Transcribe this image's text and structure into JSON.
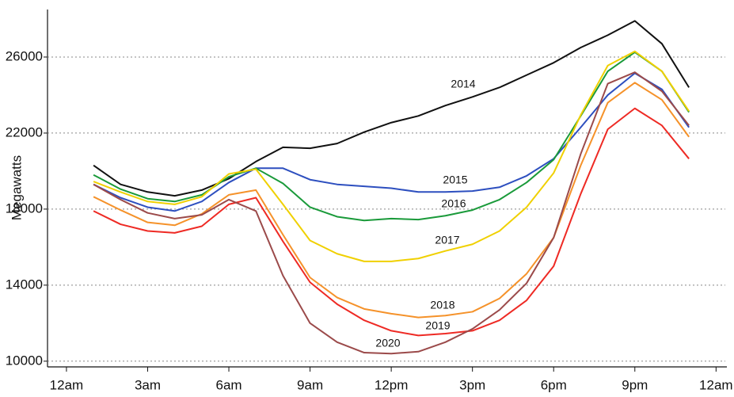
{
  "chart_data": {
    "type": "line",
    "ylabel": "Megawatts",
    "x": [
      1,
      2,
      3,
      4,
      5,
      6,
      7,
      8,
      9,
      10,
      11,
      12,
      13,
      14,
      15,
      16,
      17,
      18,
      19,
      20,
      21,
      22,
      23
    ],
    "xlim": [
      -0.7,
      24.4
    ],
    "xticks": [
      {
        "value": 0,
        "label": "12am"
      },
      {
        "value": 3,
        "label": "3am"
      },
      {
        "value": 6,
        "label": "6am"
      },
      {
        "value": 9,
        "label": "9am"
      },
      {
        "value": 12,
        "label": "12pm"
      },
      {
        "value": 15,
        "label": "3pm"
      },
      {
        "value": 18,
        "label": "6pm"
      },
      {
        "value": 21,
        "label": "9pm"
      },
      {
        "value": 24,
        "label": "12am"
      }
    ],
    "ylim": [
      9700,
      28500
    ],
    "yticks": [
      10000,
      14000,
      18000,
      22000,
      26000
    ],
    "grid": true,
    "series": [
      {
        "name": "2014",
        "color": "#111111",
        "values": [
          20300,
          19300,
          18900,
          18700,
          19000,
          19600,
          20500,
          21250,
          21200,
          21450,
          22050,
          22550,
          22900,
          23450,
          23900,
          24400,
          25050,
          25700,
          26500,
          27150,
          27900,
          26700,
          24400
        ]
      },
      {
        "name": "2015",
        "color": "#2d4fbf",
        "values": [
          19300,
          18600,
          18100,
          17900,
          18400,
          19400,
          20150,
          20150,
          19550,
          19300,
          19200,
          19100,
          18900,
          18900,
          18950,
          19150,
          19750,
          20650,
          22300,
          24000,
          25150,
          24300,
          22300
        ]
      },
      {
        "name": "2016",
        "color": "#1a9a3a",
        "values": [
          19800,
          19050,
          18550,
          18400,
          18750,
          19700,
          20150,
          19350,
          18100,
          17600,
          17400,
          17500,
          17450,
          17650,
          17950,
          18500,
          19400,
          20600,
          22900,
          25250,
          26250,
          25250,
          23100
        ]
      },
      {
        "name": "2017",
        "color": "#f0d000",
        "values": [
          19450,
          18900,
          18400,
          18250,
          18650,
          19850,
          20100,
          18250,
          16350,
          15650,
          15250,
          15250,
          15400,
          15800,
          16150,
          16850,
          18100,
          19900,
          22950,
          25550,
          26300,
          25250,
          23150
        ]
      },
      {
        "name": "2018",
        "color": "#f5922a",
        "values": [
          18650,
          17950,
          17300,
          17150,
          17750,
          18750,
          19000,
          16650,
          14400,
          13350,
          12750,
          12500,
          12300,
          12400,
          12600,
          13300,
          14600,
          16500,
          20300,
          23600,
          24650,
          23750,
          21800
        ]
      },
      {
        "name": "2019",
        "color": "#ee2a24",
        "values": [
          17900,
          17200,
          16850,
          16750,
          17100,
          18250,
          18600,
          16300,
          14150,
          13000,
          12150,
          11600,
          11350,
          11450,
          11600,
          12150,
          13200,
          15000,
          18800,
          22200,
          23300,
          22400,
          20650
        ]
      },
      {
        "name": "2020",
        "color": "#9b4a4a",
        "values": [
          19300,
          18500,
          17800,
          17500,
          17700,
          18500,
          17900,
          14500,
          12000,
          11000,
          10450,
          10400,
          10500,
          11000,
          11700,
          12700,
          14100,
          16500,
          20900,
          24600,
          25200,
          24200,
          22400
        ]
      }
    ]
  }
}
